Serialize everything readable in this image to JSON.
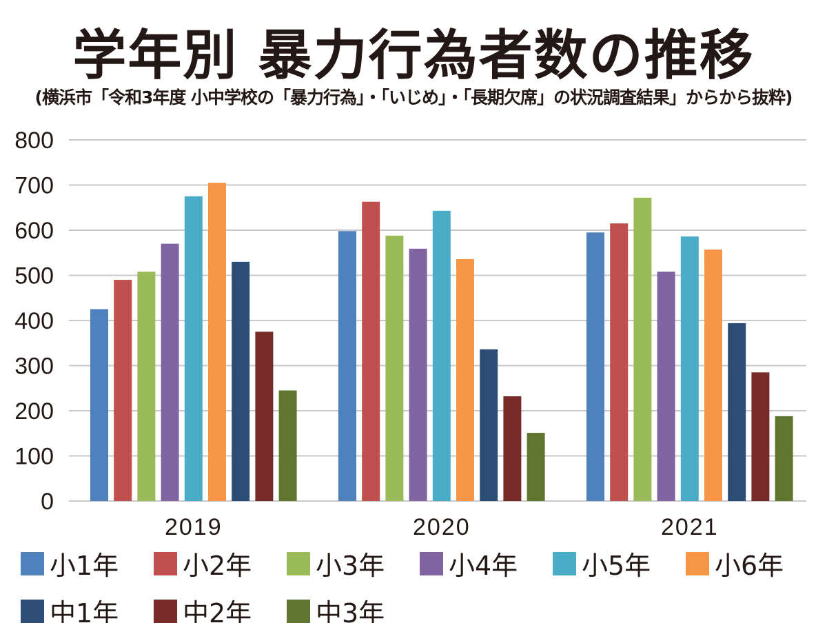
{
  "title": "学年別 暴力行為者数の推移",
  "subtitle": "(横浜市「令和3年度 小中学校の「暴力行為」・「いじめ」・「長期欠席」の状況調査結果」からから抜粋)",
  "chart_data": {
    "type": "bar",
    "title": "学年別 暴力行為者数の推移",
    "categories": [
      "2019",
      "2020",
      "2021"
    ],
    "ylim": [
      0,
      800
    ],
    "yticks": [
      0,
      100,
      200,
      300,
      400,
      500,
      600,
      700,
      800
    ],
    "grid": true,
    "legend_position": "bottom",
    "series": [
      {
        "name": "小1年",
        "color": "#4F81BD",
        "values": [
          425,
          598,
          595
        ]
      },
      {
        "name": "小2年",
        "color": "#C0504D",
        "values": [
          490,
          663,
          615
        ]
      },
      {
        "name": "小3年",
        "color": "#9BBB59",
        "values": [
          508,
          588,
          672
        ]
      },
      {
        "name": "小4年",
        "color": "#8064A2",
        "values": [
          570,
          559,
          508
        ]
      },
      {
        "name": "小5年",
        "color": "#4BACC6",
        "values": [
          675,
          643,
          586
        ]
      },
      {
        "name": "小6年",
        "color": "#F79646",
        "values": [
          705,
          536,
          557
        ]
      },
      {
        "name": "中1年",
        "color": "#2C4D75",
        "values": [
          530,
          336,
          394
        ]
      },
      {
        "name": "中2年",
        "color": "#772C2A",
        "values": [
          375,
          232,
          285
        ]
      },
      {
        "name": "中3年",
        "color": "#5F7530",
        "values": [
          245,
          151,
          188
        ]
      }
    ]
  }
}
